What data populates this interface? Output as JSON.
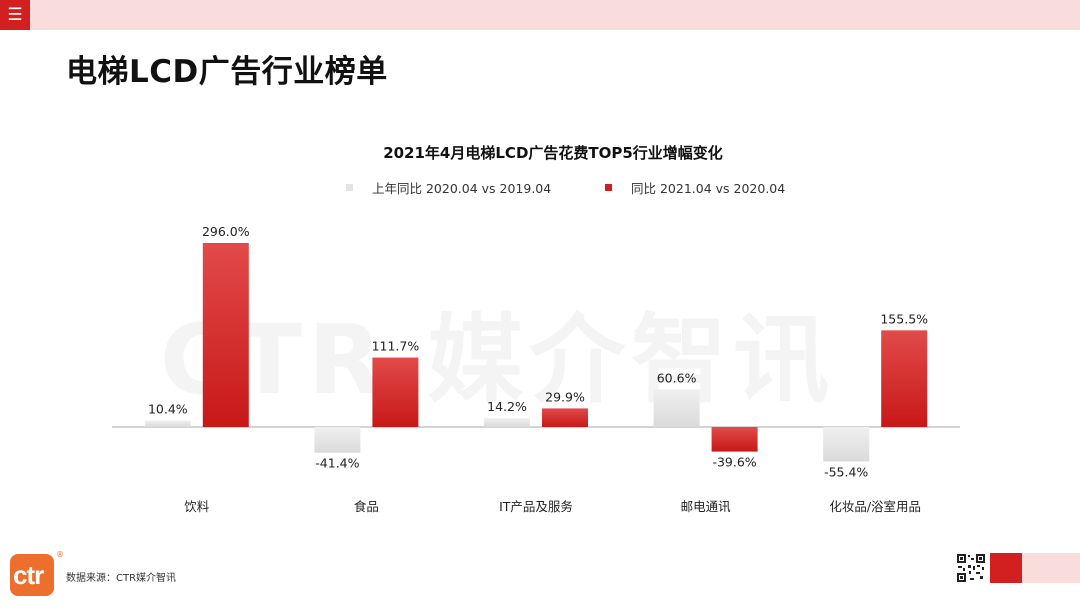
{
  "header": {
    "menu_icon": "☰",
    "title": "电梯LCD广告行业榜单"
  },
  "watermark_text": "CTR 媒介智讯",
  "chart_data": {
    "type": "bar",
    "title": "2021年4月电梯LCD广告花费TOP5行业增幅变化",
    "categories": [
      "饮料",
      "食品",
      "IT产品及服务",
      "邮电通讯",
      "化妆品/浴室用品"
    ],
    "series": [
      {
        "name": "上年同比 2020.04 vs 2019.04",
        "color": "#e4e4e4",
        "values": [
          10.4,
          -41.4,
          14.2,
          60.6,
          -55.4
        ],
        "labels": [
          "10.4%",
          "-41.4%",
          "14.2%",
          "60.6%",
          "-55.4%"
        ]
      },
      {
        "name": "同比 2021.04 vs 2020.04",
        "color": "#d21f1f",
        "values": [
          296.0,
          111.7,
          29.9,
          -39.6,
          155.5
        ],
        "labels": [
          "296.0%",
          "111.7%",
          "29.9%",
          "-39.6%",
          "155.5%"
        ]
      }
    ],
    "ylim": [
      -100,
      300
    ],
    "legend_position": "top",
    "grid": false
  },
  "footer": {
    "logo_text": "ctr",
    "logo_reg": "®",
    "source": "数据来源：CTR媒介智讯"
  }
}
